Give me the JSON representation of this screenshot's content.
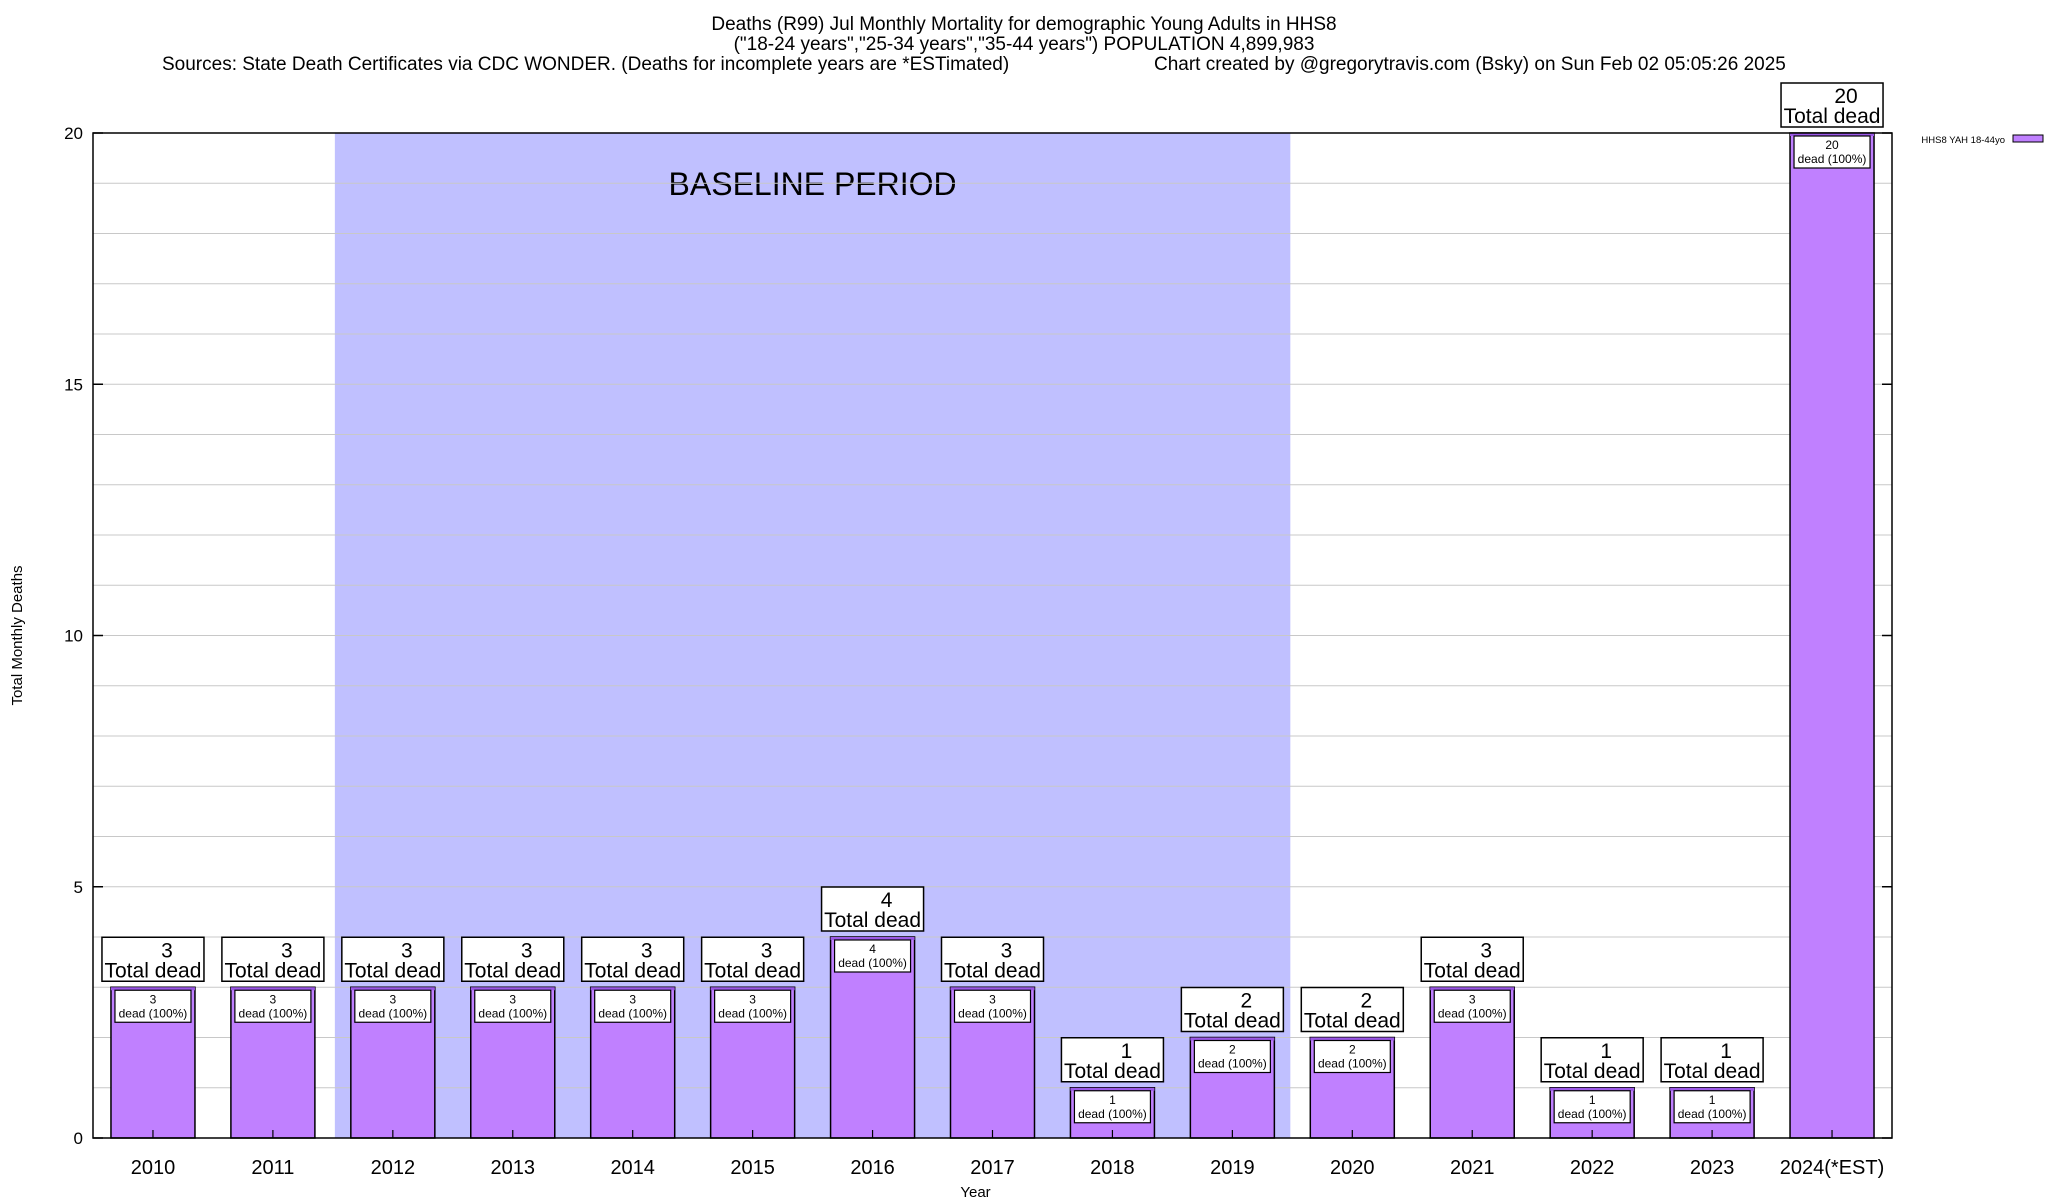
{
  "title_lines": {
    "line1": "Deaths (R99) Jul Monthly Mortality for demographic Young Adults in HHS8",
    "line2": "(\"18-24 years\",\"25-34 years\",\"35-44 years\") POPULATION 4,899,983",
    "line3_left": "Sources: State Death Certificates via CDC WONDER. (Deaths for incomplete years are *ESTimated)",
    "line3_right": "Chart created by @gregorytravis.com (Bsky) on Sun Feb 02 05:05:26 2025"
  },
  "chart_data": {
    "type": "bar",
    "categories": [
      "2010",
      "2011",
      "2012",
      "2013",
      "2014",
      "2015",
      "2016",
      "2017",
      "2018",
      "2019",
      "2020",
      "2021",
      "2022",
      "2023",
      "2024(*EST)"
    ],
    "series": [
      {
        "name": "HHS8 YAH 18-44yo",
        "values": [
          3,
          3,
          3,
          3,
          3,
          3,
          4,
          3,
          1,
          2,
          2,
          3,
          1,
          1,
          20
        ]
      }
    ],
    "xlabel": "Year",
    "ylabel": "Total Monthly Deaths",
    "ylim": [
      0,
      20
    ],
    "yticks": [
      0,
      5,
      10,
      15,
      20
    ],
    "grid": true,
    "legend_position": "top-right",
    "total_label_suffix": "Total dead",
    "inner_label_suffix": "dead (100%)",
    "baseline": {
      "label": "BASELINE PERIOD",
      "from": "2012",
      "to": "2019"
    },
    "colors": {
      "bar": "#c080ff",
      "bar_top": "#9b58e6",
      "baseline": "#c0c0ff",
      "grid": "#c8c8c8"
    }
  }
}
